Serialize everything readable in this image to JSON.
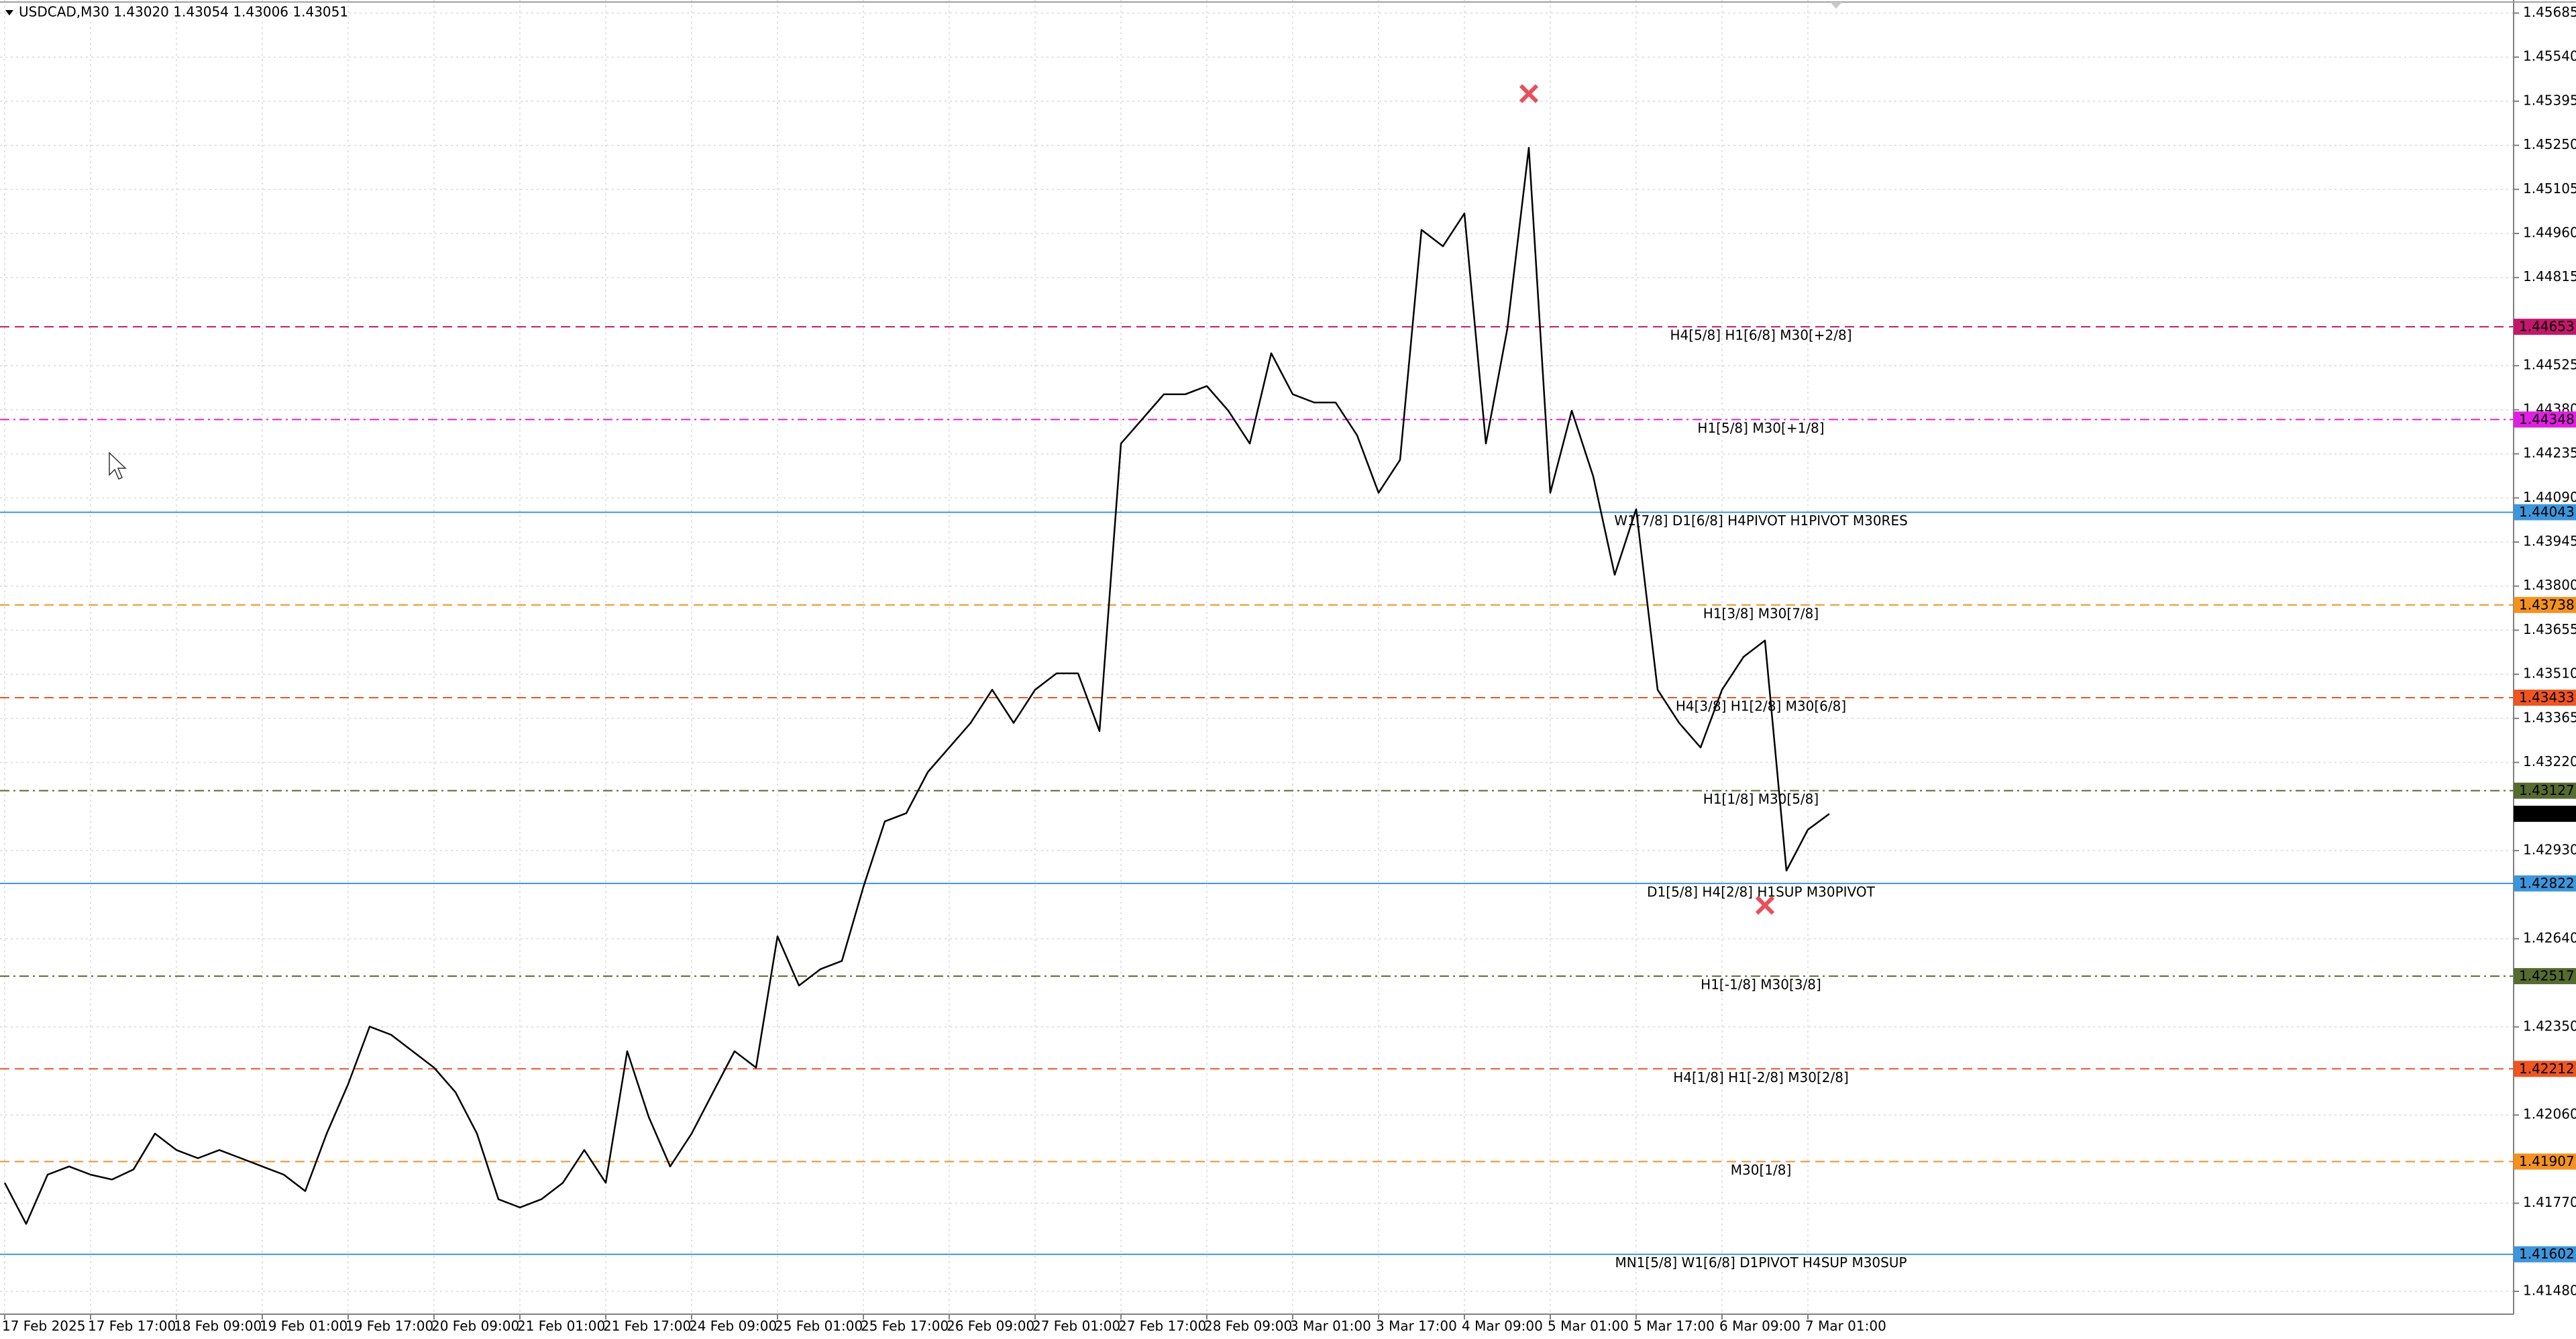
{
  "chart_data": {
    "type": "line",
    "title": "USDCAD,M30  1.43020 1.43054 1.43006 1.43051",
    "color": "#000000",
    "categories": [
      "17 Feb 2025",
      null,
      null,
      null,
      "17 Feb 17:00",
      null,
      null,
      null,
      "18 Feb 09:00",
      null,
      null,
      null,
      "19 Feb 01:00",
      null,
      null,
      null,
      "19 Feb 17:00",
      null,
      null,
      null,
      "20 Feb 09:00",
      null,
      null,
      null,
      "21 Feb 01:00",
      null,
      null,
      null,
      "21 Feb 17:00",
      null,
      null,
      null,
      "24 Feb 09:00",
      null,
      null,
      null,
      "25 Feb 01:00",
      null,
      null,
      null,
      "25 Feb 17:00",
      null,
      null,
      null,
      "26 Feb 09:00",
      null,
      null,
      null,
      "27 Feb 01:00",
      null,
      null,
      null,
      "27 Feb 17:00",
      null,
      null,
      null,
      "28 Feb 09:00",
      null,
      null,
      null,
      "3 Mar 01:00",
      null,
      null,
      null,
      "3 Mar 17:00",
      null,
      null,
      null,
      "4 Mar 09:00",
      null,
      null,
      null,
      "5 Mar 01:00",
      null,
      null,
      null,
      "5 Mar 17:00",
      null,
      null,
      null,
      "6 Mar 09:00",
      null,
      null,
      null,
      "7 Mar 01:00",
      null
    ],
    "values": [
      1.41837,
      1.41702,
      1.41864,
      1.41891,
      1.41864,
      1.41848,
      1.41881,
      1.41999,
      1.41945,
      1.41918,
      1.41945,
      1.41918,
      1.41891,
      1.41864,
      1.4181,
      1.41999,
      1.42162,
      1.42351,
      1.42324,
      1.4227,
      1.42216,
      1.42135,
      1.41999,
      1.41783,
      1.41756,
      1.41783,
      1.41837,
      1.41945,
      1.41837,
      1.4227,
      1.42054,
      1.41891,
      1.41999,
      1.42135,
      1.4227,
      1.42216,
      1.42648,
      1.42486,
      1.4254,
      1.42567,
      1.4281,
      1.43026,
      1.43053,
      1.43188,
      1.43269,
      1.4335,
      1.43459,
      1.4335,
      1.43459,
      1.43513,
      1.43513,
      1.43323,
      1.44269,
      1.4435,
      1.44431,
      1.44431,
      1.44458,
      1.44377,
      1.44269,
      1.44566,
      1.44431,
      1.44404,
      1.44404,
      1.44296,
      1.44107,
      1.44215,
      1.44972,
      1.44918,
      1.45026,
      1.44269,
      1.44647,
      1.45242,
      1.44107,
      1.44377,
      1.44161,
      1.43837,
      1.44053,
      1.43459,
      1.4335,
      1.43269,
      1.43459,
      1.43567,
      1.43621,
      1.42864,
      1.42999,
      1.43051
    ],
    "ylim": [
      1.41405,
      1.45728
    ],
    "yticks": [
      1.45685,
      {
        "value": 1.4554,
        "label": "1.45540"
      },
      1.45395,
      {
        "value": 1.4525,
        "label": "1.45250"
      },
      1.45105,
      {
        "value": 1.4496,
        "label": "1.44960"
      },
      1.44815,
      1.44525,
      {
        "value": 1.4438,
        "label": "1.44380"
      },
      1.44235,
      {
        "value": 1.4409,
        "label": "1.44090"
      },
      1.43945,
      {
        "value": 1.438,
        "label": "1.43800"
      },
      1.43655,
      {
        "value": 1.4351,
        "label": "1.43510"
      },
      1.43365,
      {
        "value": 1.4322,
        "label": "1.43220"
      },
      {
        "value": 1.4293,
        "label": "1.42930"
      },
      {
        "value": 1.4264,
        "label": "1.42640"
      },
      {
        "value": 1.4235,
        "label": "1.42350"
      },
      {
        "value": 1.4206,
        "label": "1.42060"
      },
      {
        "value": 1.4177,
        "label": "1.41770"
      },
      {
        "value": 1.4148,
        "label": "1.41480"
      }
    ],
    "grid": true,
    "levels": [
      {
        "value": 1.44653,
        "label": "H4[5/8] H1[6/8] M30[+2/8]",
        "color": "#c2186b",
        "dash": "14 8"
      },
      {
        "value": 1.44348,
        "label": "H1[5/8] M30[+1/8]",
        "color": "#e020e0",
        "dash": "14 6 3 6"
      },
      {
        "value": 1.44043,
        "label": "W1[7/8] D1[6/8] H4PIVOT H1PIVOT M30RES",
        "color": "#3d96dc",
        "dash": "none"
      },
      {
        "value": 1.43738,
        "label": "H1[3/8] M30[7/8]",
        "color": "#f39220",
        "dash": "14 8"
      },
      {
        "value": 1.43433,
        "label": "H4[3/8] H1[2/8] M30[6/8]",
        "color": "#ee5522",
        "dash": "14 8"
      },
      {
        "value": 1.43127,
        "label": "H1[1/8] M30[5/8]",
        "color": "#556b2f",
        "dash": "14 6 3 6"
      },
      {
        "value": 1.42822,
        "label": "D1[5/8] H4[2/8] H1SUP M30PIVOT",
        "color": "#3d96dc",
        "dash": "none"
      },
      {
        "value": 1.42517,
        "label": "H1[-1/8] M30[3/8]",
        "color": "#556b2f",
        "dash": "14 6 3 6"
      },
      {
        "value": 1.42212,
        "label": "H4[1/8] H1[-2/8] M30[2/8]",
        "color": "#ee5522",
        "dash": "14 8"
      },
      {
        "value": 1.41907,
        "label": "M30[1/8]",
        "color": "#f39220",
        "dash": "14 8"
      },
      {
        "value": 1.41602,
        "label": "MN1[5/8] W1[6/8] D1PIVOT H4SUP M30SUP",
        "color": "#3d96dc",
        "dash": "none"
      }
    ],
    "markers": [
      {
        "index": 71,
        "value": 1.4542
      },
      {
        "index": 82,
        "value": 1.4275
      }
    ],
    "marker_color": "#e8505b"
  }
}
